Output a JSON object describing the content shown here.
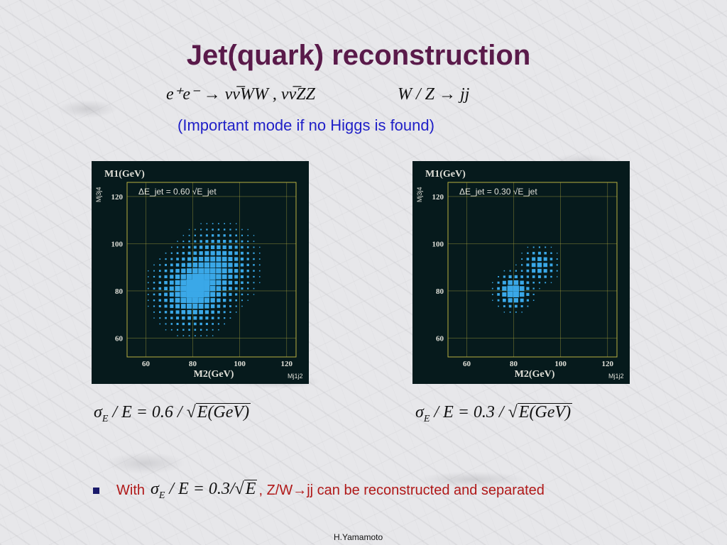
{
  "slide": {
    "title": "Jet(quark) reconstruction",
    "process_formula": "e⁺e⁻ → νν̅WW , νν̅ZZ",
    "decay_formula": "W / Z → jj",
    "subtitle": "(Important mode if no Higgs is found)",
    "resolution_left": "σ",
    "res_left_sub": "E",
    "res_left_mid": " / E = 0.6 / ",
    "res_left_root": "E(GeV)",
    "resolution_right": "σ",
    "res_right_sub": "E",
    "res_right_mid": " / E = 0.3 / ",
    "res_right_root": "E(GeV)",
    "bullet_with": "With",
    "bullet_formula_sigma": "σ",
    "bullet_formula_sub": "E",
    "bullet_formula_mid": " / E = 0.3/",
    "bullet_formula_root": "E",
    "bullet_rest": ", Z/W→jj can be reconstructed and separated",
    "footer": "H.Yamamoto"
  },
  "colors": {
    "title": "#5a1a4a",
    "subtitle": "#2020c8",
    "bullet_text": "#b01818",
    "plot_bg": "#061a1c",
    "plot_frame": "#b8b040",
    "plot_text": "#e0e0d8",
    "marker": "#3aa8e8"
  },
  "chart_data": [
    {
      "type": "scatter",
      "title": "",
      "annotation": "ΔE_jet = 0.60 √E_jet",
      "ylabel": "M1(GeV)",
      "ylabel_side": "Mj3j4",
      "xlabel": "M2(GeV)",
      "xlabel_side": "Mj1j2",
      "xlim": [
        52,
        124
      ],
      "ylim": [
        52,
        126
      ],
      "xticks": [
        60,
        80,
        100,
        120
      ],
      "yticks": [
        60,
        80,
        100,
        120
      ],
      "grid": true,
      "peaks": [
        {
          "x": 80,
          "y": 80,
          "weight": 1.0,
          "sigma": 7.5
        },
        {
          "x": 91,
          "y": 91,
          "weight": 0.6,
          "sigma": 7.5
        }
      ],
      "bin_width": 2.5
    },
    {
      "type": "scatter",
      "title": "",
      "annotation": "ΔE_jet = 0.30 √E_jet",
      "ylabel": "M1(GeV)",
      "ylabel_side": "Mj3j4",
      "xlabel": "M2(GeV)",
      "xlabel_side": "Mj1j2",
      "xlim": [
        52,
        124
      ],
      "ylim": [
        52,
        126
      ],
      "xticks": [
        60,
        80,
        100,
        120
      ],
      "yticks": [
        60,
        80,
        100,
        120
      ],
      "grid": true,
      "peaks": [
        {
          "x": 80,
          "y": 80,
          "weight": 1.0,
          "sigma": 3.6
        },
        {
          "x": 91,
          "y": 91,
          "weight": 0.55,
          "sigma": 3.6
        }
      ],
      "bin_width": 2.5
    }
  ]
}
